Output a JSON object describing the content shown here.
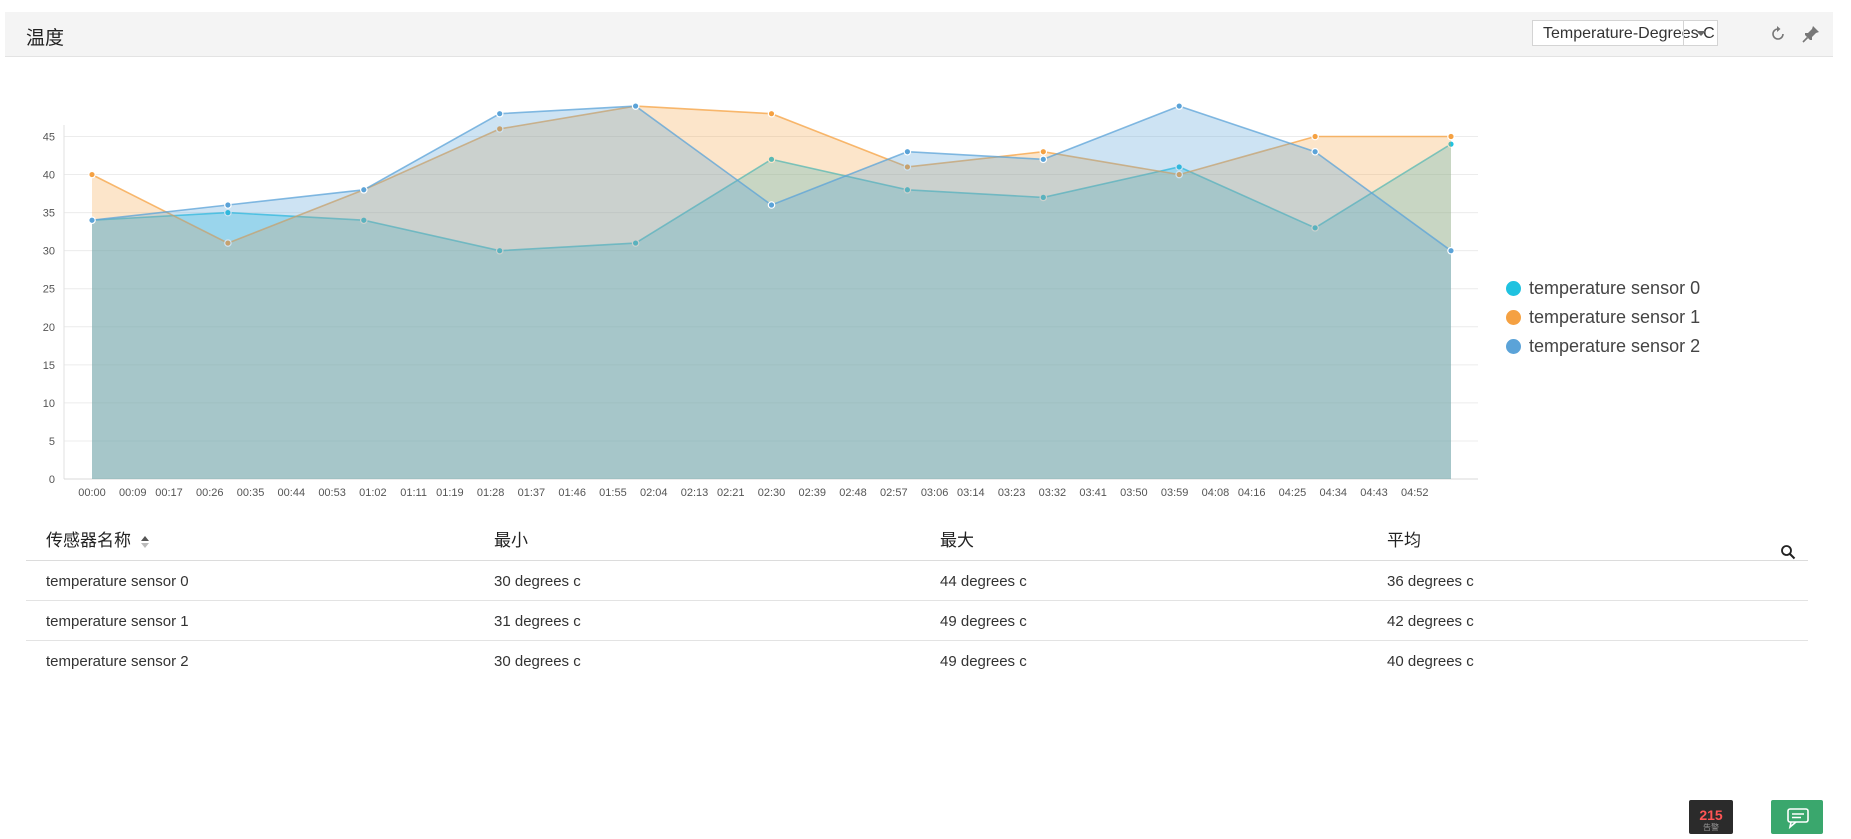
{
  "header": {
    "title": "温度",
    "unit_selector": {
      "value": "Temperature-Degrees C"
    },
    "icons": {
      "refresh": "refresh-icon",
      "pin": "pin-icon"
    }
  },
  "chart_data": {
    "type": "area",
    "x_ticks": [
      "00:00",
      "00:09",
      "00:17",
      "00:26",
      "00:35",
      "00:44",
      "00:53",
      "01:02",
      "01:11",
      "01:19",
      "01:28",
      "01:37",
      "01:46",
      "01:55",
      "02:04",
      "02:13",
      "02:21",
      "02:30",
      "02:39",
      "02:48",
      "02:57",
      "03:06",
      "03:14",
      "03:23",
      "03:32",
      "03:41",
      "03:50",
      "03:59",
      "04:08",
      "04:16",
      "04:25",
      "04:34",
      "04:43",
      "04:52"
    ],
    "ylim": [
      0,
      50
    ],
    "y_ticks": [
      0,
      5,
      10,
      15,
      20,
      25,
      30,
      35,
      40,
      45
    ],
    "grid": true,
    "legend_position": "right",
    "series": [
      {
        "name": "temperature sensor 0",
        "color": "#1fc2e0",
        "fill": "rgba(31,194,224,0.32)",
        "points": [
          [
            "00:00",
            34
          ],
          [
            "00:30",
            35
          ],
          [
            "01:00",
            34
          ],
          [
            "01:30",
            30
          ],
          [
            "02:00",
            31
          ],
          [
            "02:30",
            42
          ],
          [
            "03:00",
            38
          ],
          [
            "03:30",
            37
          ],
          [
            "04:00",
            41
          ],
          [
            "04:30",
            33
          ],
          [
            "05:00",
            44
          ]
        ]
      },
      {
        "name": "temperature sensor 1",
        "color": "#f5a142",
        "fill": "rgba(245,161,66,0.28)",
        "points": [
          [
            "00:00",
            40
          ],
          [
            "00:30",
            31
          ],
          [
            "01:00",
            38
          ],
          [
            "01:30",
            46
          ],
          [
            "02:00",
            49
          ],
          [
            "02:30",
            48
          ],
          [
            "03:00",
            41
          ],
          [
            "03:30",
            43
          ],
          [
            "04:00",
            40
          ],
          [
            "04:30",
            45
          ],
          [
            "05:00",
            45
          ]
        ]
      },
      {
        "name": "temperature sensor 2",
        "color": "#5ba3d8",
        "fill": "rgba(91,163,216,0.30)",
        "points": [
          [
            "00:00",
            34
          ],
          [
            "00:30",
            36
          ],
          [
            "01:00",
            38
          ],
          [
            "01:30",
            48
          ],
          [
            "02:00",
            49
          ],
          [
            "02:30",
            36
          ],
          [
            "03:00",
            43
          ],
          [
            "03:30",
            42
          ],
          [
            "04:00",
            49
          ],
          [
            "04:30",
            43
          ],
          [
            "05:00",
            30
          ]
        ]
      }
    ]
  },
  "table": {
    "columns": [
      "传感器名称",
      "最小",
      "最大",
      "平均"
    ],
    "rows": [
      [
        "temperature sensor 0",
        "30 degrees c",
        "44 degrees c",
        "36 degrees c"
      ],
      [
        "temperature sensor 1",
        "31 degrees c",
        "49 degrees c",
        "42 degrees c"
      ],
      [
        "temperature sensor 2",
        "30 degrees c",
        "49 degrees c",
        "40 degrees c"
      ]
    ]
  },
  "footer": {
    "badge": {
      "count": "215",
      "sub": "告警"
    },
    "chat_icon": "chat-icon"
  }
}
